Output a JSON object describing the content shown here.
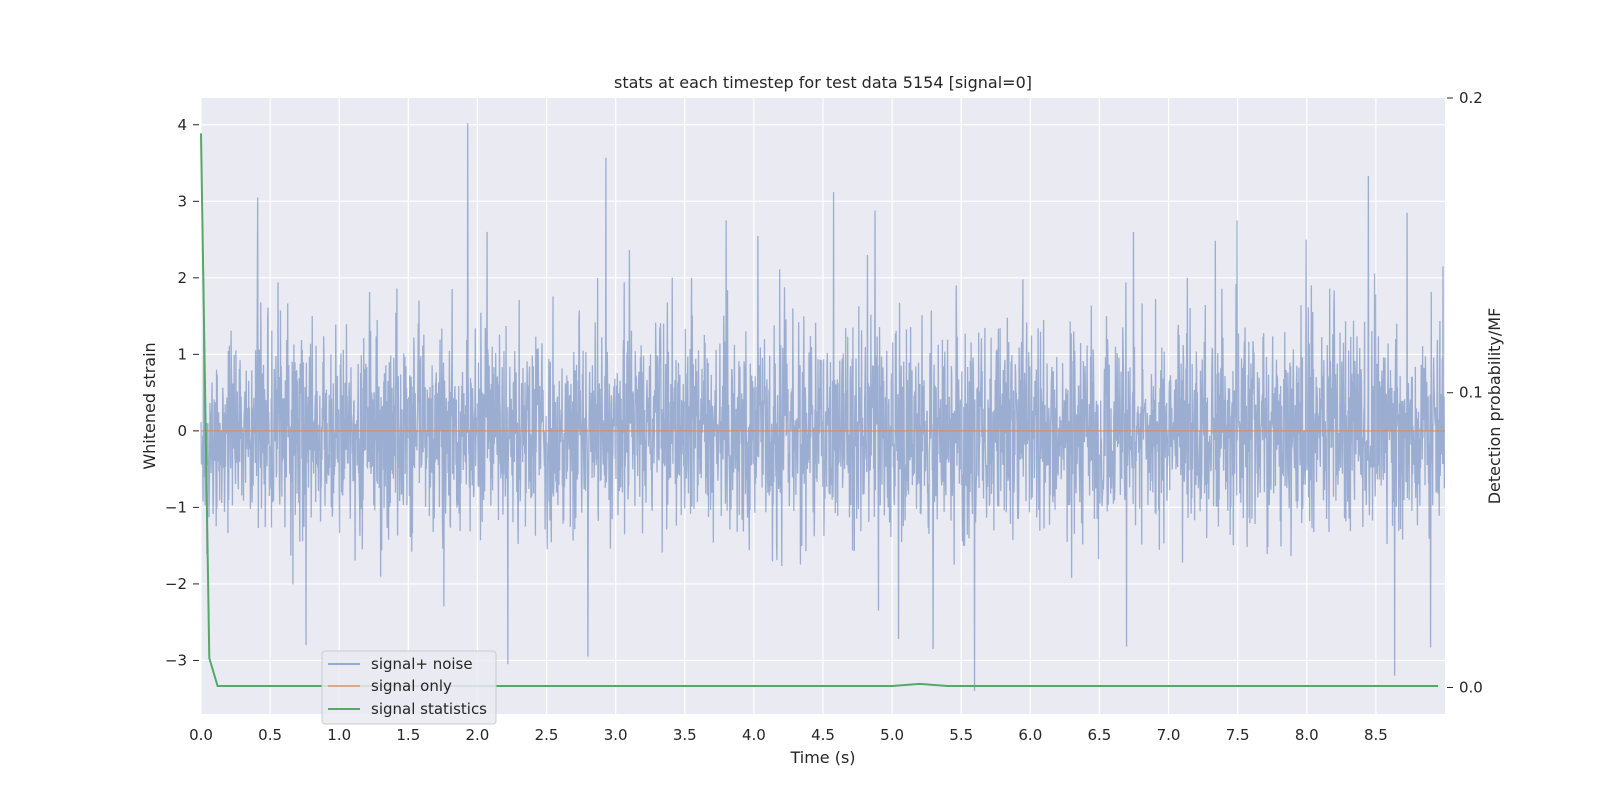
{
  "chart_data": {
    "type": "line",
    "title": "stats at each timestep for test data 5154 [signal=0]",
    "xlabel": "Time (s)",
    "ylabel": "Whitened strain",
    "y2label": "Detection probability/MF",
    "xlim": [
      0.0,
      9.0
    ],
    "ylim": [
      -3.7,
      4.35
    ],
    "y2lim": [
      -0.009,
      0.2
    ],
    "xticks": [
      "0.0",
      "0.5",
      "1.0",
      "1.5",
      "2.0",
      "2.5",
      "3.0",
      "3.5",
      "4.0",
      "4.5",
      "5.0",
      "5.5",
      "6.0",
      "6.5",
      "7.0",
      "7.5",
      "8.0",
      "8.5"
    ],
    "xtick_values": [
      0.0,
      0.5,
      1.0,
      1.5,
      2.0,
      2.5,
      3.0,
      3.5,
      4.0,
      4.5,
      5.0,
      5.5,
      6.0,
      6.5,
      7.0,
      7.5,
      8.0,
      8.5
    ],
    "yticks": [
      "−3",
      "−2",
      "−1",
      "0",
      "1",
      "2",
      "3",
      "4"
    ],
    "ytick_values": [
      -3,
      -2,
      -1,
      0,
      1,
      2,
      3,
      4
    ],
    "y2ticks": [
      "0.0",
      "0.1",
      "0.2"
    ],
    "y2tick_values": [
      0.0,
      0.1,
      0.2
    ],
    "grid": true,
    "legend_position": "lower-left",
    "series": [
      {
        "name": "signal+ noise",
        "axis": "left",
        "color": "#4c72b0",
        "noise_std": 0.68,
        "spikes": [
          {
            "x": 0.02,
            "y": 2.0
          },
          {
            "x": 0.41,
            "y": 3.05
          },
          {
            "x": 0.76,
            "y": -2.8
          },
          {
            "x": 1.93,
            "y": 4.02
          },
          {
            "x": 2.07,
            "y": 2.6
          },
          {
            "x": 2.22,
            "y": -3.05
          },
          {
            "x": 2.93,
            "y": 3.57
          },
          {
            "x": 2.8,
            "y": -2.95
          },
          {
            "x": 3.8,
            "y": 2.75
          },
          {
            "x": 4.58,
            "y": 3.12
          },
          {
            "x": 4.88,
            "y": 2.88
          },
          {
            "x": 5.05,
            "y": -2.72
          },
          {
            "x": 5.3,
            "y": -2.85
          },
          {
            "x": 5.6,
            "y": -3.4
          },
          {
            "x": 6.7,
            "y": -2.82
          },
          {
            "x": 6.75,
            "y": 2.6
          },
          {
            "x": 7.5,
            "y": 2.75
          },
          {
            "x": 8.45,
            "y": 3.33
          },
          {
            "x": 8.0,
            "y": 2.5
          },
          {
            "x": 8.64,
            "y": -3.2
          },
          {
            "x": 8.73,
            "y": 2.85
          },
          {
            "x": 8.9,
            "y": -2.83
          },
          {
            "x": 8.99,
            "y": 2.15
          }
        ]
      },
      {
        "name": "signal only",
        "axis": "left",
        "color": "#dd8452",
        "x": [
          0.0,
          9.0
        ],
        "y": [
          0.0,
          0.0
        ]
      },
      {
        "name": "signal statistics",
        "axis": "right",
        "color": "#55a868",
        "x": [
          0.0,
          0.06,
          0.12,
          0.5,
          1.0,
          2.0,
          3.0,
          4.0,
          5.0,
          5.2,
          5.4,
          6.0,
          7.0,
          8.0,
          8.95
        ],
        "y": [
          0.188,
          0.01,
          0.0005,
          0.0005,
          0.0005,
          0.0005,
          0.0005,
          0.0005,
          0.0005,
          0.0012,
          0.0005,
          0.0005,
          0.0005,
          0.0005,
          0.0005
        ]
      }
    ]
  }
}
